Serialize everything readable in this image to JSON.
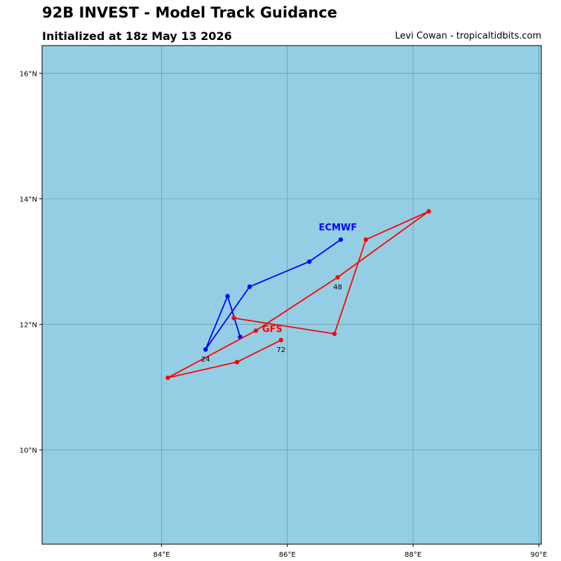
{
  "header": {
    "title": "92B INVEST - Model Track Guidance",
    "subtitle": "Initialized at 18z May 13 2026",
    "credit": "Levi Cowan - tropicaltidbits.com"
  },
  "colors": {
    "ocean": "#94cee4",
    "grid": "#5f8a99",
    "ecmwf": "#0000ff",
    "gfs": "#ff0000"
  },
  "map": {
    "lon_range": [
      82.1,
      90.04
    ],
    "lat_range": [
      8.5,
      16.44
    ],
    "lon_ticks": [
      84,
      86,
      88,
      90
    ],
    "lat_ticks": [
      10,
      12,
      14,
      16
    ],
    "lon_tick_labels": [
      "84°E",
      "86°E",
      "88°E",
      "90°E"
    ],
    "lat_tick_labels": [
      "10°N",
      "12°N",
      "14°N",
      "16°N"
    ]
  },
  "tracks": [
    {
      "name": "ECMWF",
      "color": "#0000ff",
      "points": [
        [
          85.25,
          11.8
        ],
        [
          85.05,
          12.45
        ],
        [
          84.7,
          11.6
        ],
        [
          85.4,
          12.6
        ],
        [
          86.35,
          13.0
        ],
        [
          86.85,
          13.35
        ]
      ],
      "label_lonlat": [
        86.5,
        13.5
      ]
    },
    {
      "name": "GFS",
      "color": "#ff0000",
      "points": [
        [
          85.9,
          11.75
        ],
        [
          85.2,
          11.4
        ],
        [
          84.1,
          11.15
        ],
        [
          85.5,
          11.9
        ],
        [
          86.8,
          12.75
        ],
        [
          88.25,
          13.8
        ],
        [
          87.25,
          13.35
        ],
        [
          86.75,
          11.85
        ],
        [
          85.15,
          12.1
        ]
      ],
      "label_lonlat": [
        85.6,
        11.88
      ]
    }
  ],
  "hour_labels": [
    {
      "text": "24",
      "lon": 84.7,
      "lat": 11.6
    },
    {
      "text": "48",
      "lon": 86.8,
      "lat": 12.75
    },
    {
      "text": "72",
      "lon": 85.9,
      "lat": 11.75
    }
  ]
}
